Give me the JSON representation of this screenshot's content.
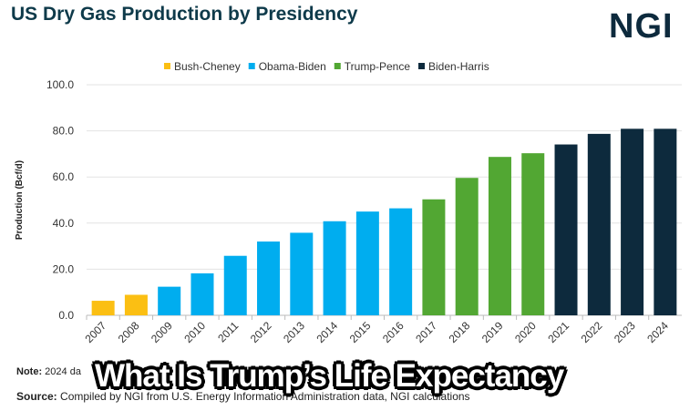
{
  "header": {
    "title": "US Dry Gas Production by Presidency",
    "logo": "NGI"
  },
  "chart_data": {
    "type": "bar",
    "title": "US Dry Gas Production by Presidency",
    "ylabel": "Production (Bcf/d)",
    "xlabel": "",
    "ylim": [
      0,
      100
    ],
    "yticks": [
      "0.0",
      "20.0",
      "40.0",
      "60.0",
      "80.0",
      "100.0"
    ],
    "grid": true,
    "legend_position": "top",
    "categories": [
      "2007",
      "2008",
      "2009",
      "2010",
      "2011",
      "2012",
      "2013",
      "2014",
      "2015",
      "2016",
      "2017",
      "2018",
      "2019",
      "2020",
      "2021",
      "2022",
      "2023",
      "2024"
    ],
    "values": [
      6.3,
      8.9,
      12.4,
      18.2,
      25.8,
      32.0,
      35.8,
      40.8,
      45.0,
      46.4,
      50.3,
      59.6,
      68.7,
      70.3,
      74.1,
      78.7,
      80.9,
      80.9
    ],
    "groups": [
      "Bush-Cheney",
      "Bush-Cheney",
      "Obama-Biden",
      "Obama-Biden",
      "Obama-Biden",
      "Obama-Biden",
      "Obama-Biden",
      "Obama-Biden",
      "Obama-Biden",
      "Obama-Biden",
      "Trump-Pence",
      "Trump-Pence",
      "Trump-Pence",
      "Trump-Pence",
      "Biden-Harris",
      "Biden-Harris",
      "Biden-Harris",
      "Biden-Harris"
    ],
    "legend": [
      {
        "name": "Bush-Cheney",
        "color": "#fbbf13"
      },
      {
        "name": "Obama-Biden",
        "color": "#00adef"
      },
      {
        "name": "Trump-Pence",
        "color": "#52a733"
      },
      {
        "name": "Biden-Harris",
        "color": "#0d2a3d"
      }
    ]
  },
  "footer": {
    "note_label": "Note:",
    "note_text": "2024 da",
    "source_label": "Source:",
    "source_text": "Compiled by NGI from U.S. Energy Information Administration data, NGI calculations"
  },
  "overlay": {
    "caption": "What Is Trump’s Life Expectancy"
  }
}
